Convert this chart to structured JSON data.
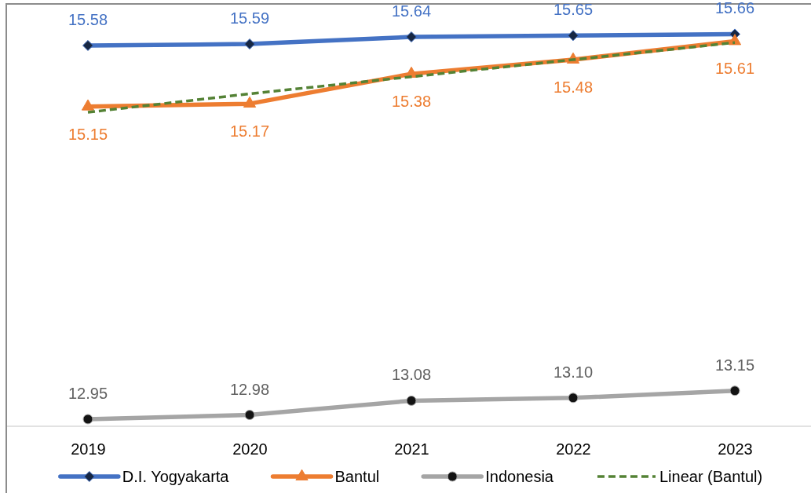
{
  "chart_data": {
    "type": "line",
    "categories": [
      "2019",
      "2020",
      "2021",
      "2022",
      "2023"
    ],
    "ylim": [
      12.9,
      15.9
    ],
    "tick_labels": "x",
    "legend": "bottom",
    "series": [
      {
        "name": "D.I. Yogyakarta",
        "color": "#4472c4",
        "marker": "diamond",
        "values": [
          15.58,
          15.59,
          15.64,
          15.65,
          15.66
        ],
        "value_labels": [
          "15.58",
          "15.59",
          "15.64",
          "15.65",
          "15.66"
        ]
      },
      {
        "name": "Bantul",
        "color": "#ed7d31",
        "marker": "triangle",
        "values": [
          15.15,
          15.17,
          15.38,
          15.48,
          15.61
        ],
        "value_labels": [
          "15.15",
          "15.17",
          "15.38",
          "15.48",
          "15.61"
        ]
      },
      {
        "name": "Indonesia",
        "color": "#a5a5a5",
        "marker": "circle",
        "values": [
          12.95,
          12.98,
          13.08,
          13.1,
          13.15
        ],
        "value_labels": [
          "12.95",
          "12.98",
          "13.08",
          "13.10",
          "13.15"
        ]
      },
      {
        "name": "Linear (Bantul)",
        "type": "line",
        "color": "#548235",
        "line_style": "dashed",
        "marker": "none",
        "values": [
          15.11,
          15.24,
          15.36,
          15.48,
          15.6
        ]
      }
    ]
  }
}
